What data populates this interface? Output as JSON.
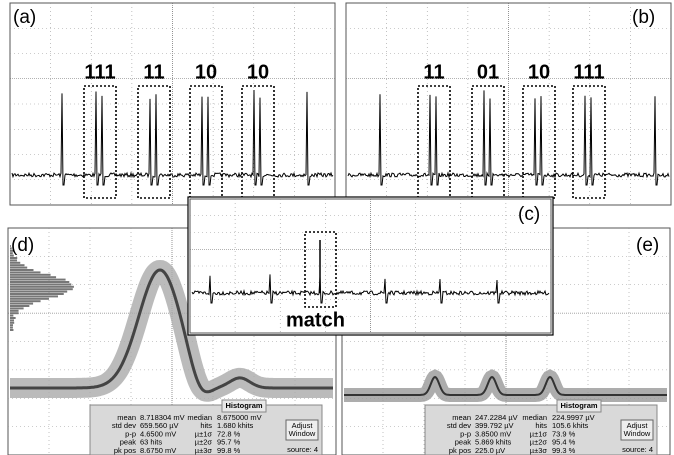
{
  "panels": [
    {
      "label": "(a)",
      "groups": [
        "111",
        "11",
        "10",
        "10"
      ]
    },
    {
      "label": "(b)",
      "groups": [
        "11",
        "01",
        "10",
        "111"
      ]
    },
    {
      "label": "(c)",
      "annotation": "match"
    },
    {
      "label": "(d)",
      "histogram": {
        "title": "Histogram",
        "stats": [
          [
            "mean",
            "8.718304 mV",
            "median",
            "8.675000 mV"
          ],
          [
            "std dev",
            "659.560 µV",
            "hits",
            "1.680 khits"
          ],
          [
            "p-p",
            "4.6500 mV",
            "µ±1σ",
            "72.8 %"
          ],
          [
            "peak",
            "63 hits",
            "µ±2σ",
            "95.7 %"
          ],
          [
            "pk pos",
            "8.6750 mV",
            "µ±3σ",
            "99.8 %"
          ]
        ],
        "button": [
          "Adjust",
          "Window"
        ],
        "source": "source: 4"
      }
    },
    {
      "label": "(e)",
      "histogram": {
        "title": "Histogram",
        "stats": [
          [
            "mean",
            "247.2284 µV",
            "median",
            "224.9997 µV"
          ],
          [
            "std dev",
            "399.792 µV",
            "hits",
            "105.6 khits"
          ],
          [
            "p-p",
            "3.8500 mV",
            "µ±1σ",
            "73.9 %"
          ],
          [
            "peak",
            "5.869 khits",
            "µ±2σ",
            "95.4 %"
          ],
          [
            "pk pos",
            "225.0 µV",
            "µ±3σ",
            "99.3 %"
          ]
        ],
        "button": [
          "Adjust",
          "Window"
        ],
        "source": "source: 4"
      }
    }
  ]
}
